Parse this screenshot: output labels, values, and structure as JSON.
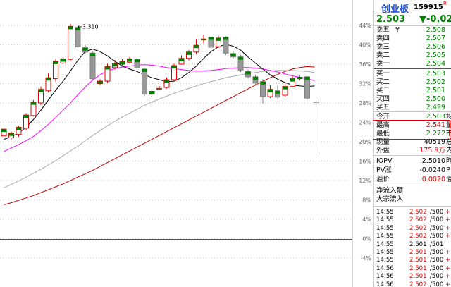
{
  "chart_data": {
    "type": "candlestick",
    "y_axis_labels": [
      "44%",
      "40%",
      "36%",
      "32%",
      "28%",
      "24%",
      "20%",
      "16%",
      "12%",
      "8%",
      "4%",
      "0%",
      "-4%"
    ],
    "annotation_high": "3.310",
    "candles": [
      {
        "o": 21.2,
        "c": 22.6,
        "h": 22.6,
        "l": 20.2
      },
      {
        "o": 20.8,
        "c": 21.8,
        "h": 22.1,
        "l": 20.5
      },
      {
        "o": 21.5,
        "c": 23.0,
        "h": 23.3,
        "l": 21.0
      },
      {
        "o": 22.8,
        "c": 25.5,
        "h": 25.9,
        "l": 22.4
      },
      {
        "o": 25.4,
        "c": 28.2,
        "h": 28.6,
        "l": 25.2
      },
      {
        "o": 28.0,
        "c": 30.8,
        "h": 31.4,
        "l": 27.6
      },
      {
        "o": 30.5,
        "c": 33.2,
        "h": 34.1,
        "l": 30.2
      },
      {
        "o": 33.0,
        "c": 36.6,
        "h": 37.0,
        "l": 32.4
      },
      {
        "o": 36.2,
        "c": 37.1,
        "h": 37.5,
        "l": 35.5
      },
      {
        "o": 37.0,
        "c": 43.8,
        "h": 44.3,
        "l": 36.8
      },
      {
        "o": 43.6,
        "c": 39.6,
        "h": 43.9,
        "l": 39.3
      },
      {
        "o": 39.4,
        "c": 38.5,
        "h": 40.0,
        "l": 38.2
      },
      {
        "o": 38.3,
        "c": 33.0,
        "h": 38.7,
        "l": 32.7
      },
      {
        "o": 32.0,
        "c": 32.5,
        "h": 32.9,
        "l": 31.7
      },
      {
        "o": 32.5,
        "c": 35.5,
        "h": 36.1,
        "l": 32.2
      },
      {
        "o": 35.3,
        "c": 36.1,
        "h": 36.9,
        "l": 34.9
      },
      {
        "o": 36.0,
        "c": 36.6,
        "h": 37.0,
        "l": 35.5
      },
      {
        "o": 36.4,
        "c": 37.1,
        "h": 37.5,
        "l": 36.1
      },
      {
        "o": 37.0,
        "c": 35.2,
        "h": 37.4,
        "l": 34.8
      },
      {
        "o": 35.0,
        "c": 29.8,
        "h": 35.3,
        "l": 29.4
      },
      {
        "o": 29.8,
        "c": 30.4,
        "h": 30.9,
        "l": 29.3
      },
      {
        "o": 31.0,
        "c": 31.0,
        "h": 31.5,
        "l": 30.6
      },
      {
        "o": 31.2,
        "c": 32.8,
        "h": 33.3,
        "l": 31.0
      },
      {
        "o": 32.8,
        "c": 35.7,
        "h": 36.1,
        "l": 32.4
      },
      {
        "o": 36.0,
        "c": 37.2,
        "h": 37.8,
        "l": 35.9
      },
      {
        "o": 37.2,
        "c": 38.5,
        "h": 38.9,
        "l": 36.8
      },
      {
        "o": 38.5,
        "c": 39.9,
        "h": 41.1,
        "l": 38.1
      },
      {
        "o": 41.0,
        "c": 41.2,
        "h": 42.1,
        "l": 40.3
      },
      {
        "o": 41.6,
        "c": 39.5,
        "h": 42.0,
        "l": 39.1
      },
      {
        "o": 39.6,
        "c": 41.4,
        "h": 41.9,
        "l": 39.4
      },
      {
        "o": 41.6,
        "c": 38.3,
        "h": 41.8,
        "l": 37.9
      },
      {
        "o": 38.2,
        "c": 37.5,
        "h": 38.7,
        "l": 37.2
      },
      {
        "o": 37.5,
        "c": 34.8,
        "h": 37.9,
        "l": 34.4
      },
      {
        "o": 34.5,
        "c": 33.4,
        "h": 34.9,
        "l": 33.1
      },
      {
        "o": 33.4,
        "c": 32.1,
        "h": 33.8,
        "l": 31.8
      },
      {
        "o": 32.4,
        "c": 29.3,
        "h": 32.9,
        "l": 27.9
      },
      {
        "o": 29.3,
        "c": 30.8,
        "h": 31.7,
        "l": 29.0
      },
      {
        "o": 30.5,
        "c": 29.2,
        "h": 31.6,
        "l": 28.8
      },
      {
        "o": 29.6,
        "c": 31.4,
        "h": 32.0,
        "l": 29.2
      },
      {
        "o": 31.4,
        "c": 33.0,
        "h": 33.5,
        "l": 31.3
      },
      {
        "o": 33.0,
        "c": 33.3,
        "h": 33.6,
        "l": 32.7
      },
      {
        "o": 33.4,
        "c": 29.0,
        "h": 33.5,
        "l": 28.7
      }
    ],
    "last_candle": {
      "o": 28.1,
      "c": 28.0,
      "h": 28.6,
      "l": 17.2
    },
    "ma5": [
      20.5,
      21.0,
      21.8,
      23.0,
      24.6,
      26.5,
      28.6,
      30.6,
      32.5,
      34.6,
      36.8,
      38.6,
      39.1,
      38.6,
      37.7,
      36.6,
      35.6,
      35.0,
      34.5,
      33.8,
      33.2,
      32.8,
      32.4,
      32.5,
      33.2,
      34.3,
      35.6,
      37.2,
      38.6,
      39.6,
      40.1,
      39.7,
      38.9,
      37.5,
      36.2,
      35.0,
      33.8,
      32.9,
      32.2,
      31.7,
      31.5,
      31.4,
      31.5
    ],
    "ma10": [
      18.0,
      18.7,
      19.4,
      20.2,
      21.1,
      22.3,
      23.6,
      25.0,
      26.5,
      28.0,
      29.7,
      31.3,
      32.7,
      33.8,
      34.6,
      35.1,
      35.4,
      35.6,
      35.8,
      35.9,
      35.8,
      35.6,
      35.3,
      35.1,
      34.9,
      34.7,
      34.6,
      34.6,
      34.7,
      34.9,
      35.1,
      35.2,
      35.3,
      35.3,
      35.2,
      35.0,
      34.7,
      34.4,
      34.0,
      33.6,
      33.3,
      33.0,
      32.6
    ],
    "ma20": [
      10.5,
      11.2,
      11.9,
      12.7,
      13.5,
      14.3,
      15.2,
      16.1,
      17.1,
      18.1,
      19.1,
      20.2,
      21.3,
      22.3,
      23.3,
      24.2,
      25.1,
      25.9,
      26.7,
      27.5,
      28.2,
      28.8,
      29.4,
      30.0,
      30.5,
      31.0,
      31.5,
      32.0,
      32.4,
      32.8,
      33.2,
      33.5,
      33.8,
      34.1,
      34.3,
      34.5,
      34.6,
      34.7,
      34.7,
      34.7,
      34.6,
      34.5,
      34.3
    ],
    "ma60": [
      7.0,
      7.4,
      7.9,
      8.4,
      8.9,
      9.5,
      10.1,
      10.7,
      11.3,
      12.0,
      12.7,
      13.4,
      14.1,
      14.9,
      15.7,
      16.5,
      17.3,
      18.1,
      18.9,
      19.7,
      20.5,
      21.3,
      22.1,
      22.9,
      23.7,
      24.5,
      25.3,
      26.1,
      26.9,
      27.7,
      28.5,
      29.3,
      30.1,
      30.9,
      31.7,
      32.5,
      33.2,
      33.9,
      34.5,
      35.0,
      35.3,
      35.5,
      35.4
    ],
    "colors": {
      "up": "#e60000",
      "down_fill": "#999999",
      "down_stroke": "#808080",
      "green_top": "#008000",
      "ma5": "#000000",
      "ma10": "#ff00ff",
      "ma20": "#aaaaaa",
      "ma60": "#c00000",
      "grid": "#c8c8c8",
      "bottom_bar": "#555555"
    }
  },
  "side": {
    "name": "创业板",
    "code": "159915",
    "code_mark": "R",
    "price": "2.503",
    "change": "▼-0.02",
    "order_book": [
      {
        "label": "卖五",
        "extra": "¥",
        "price": "2.508",
        "color": "green"
      },
      {
        "label": "卖四",
        "extra": "",
        "price": "2.507",
        "color": "green"
      },
      {
        "label": "卖三",
        "extra": "",
        "price": "2.506",
        "color": "green"
      },
      {
        "label": "卖二",
        "extra": "",
        "price": "2.505",
        "color": "green"
      },
      {
        "label": "卖一",
        "extra": "",
        "price": "2.504",
        "color": "green"
      },
      {
        "label": "买一",
        "extra": "",
        "price": "2.503",
        "color": "green"
      },
      {
        "label": "买二",
        "extra": "",
        "price": "2.502",
        "color": "green"
      },
      {
        "label": "买三",
        "extra": "",
        "price": "2.501",
        "color": "green"
      },
      {
        "label": "买四",
        "extra": "",
        "price": "2.500",
        "color": "green"
      },
      {
        "label": "买五",
        "extra": "",
        "price": "2.499",
        "color": "green"
      }
    ],
    "stats": [
      {
        "label": "今开",
        "value": "2.503",
        "vcolor": "green",
        "cut": "均"
      },
      {
        "label": "最高",
        "value": "2.541",
        "vcolor": "red",
        "cut": "量"
      },
      {
        "label": "最低",
        "value": "2.272",
        "vcolor": "green",
        "cut": "市"
      },
      {
        "label": "现量",
        "value": "40519",
        "vcolor": "black",
        "cut": "总"
      },
      {
        "label": "外盘",
        "value": "175.9万",
        "vcolor": "red",
        "cut": "内"
      }
    ],
    "iopv": [
      {
        "label": "IOPV",
        "value": "2.5010",
        "vcolor": "black",
        "cut": "昨"
      },
      {
        "label": "PV涨",
        "value": "-0.0240",
        "vcolor": "black",
        "cut": "P"
      },
      {
        "label": "溢价",
        "value": "0.0020",
        "vcolor": "red",
        "cut": "溢"
      }
    ],
    "flows": [
      "净流入额",
      "大宗流入"
    ],
    "ticks": [
      {
        "t": "14:55",
        "p": "2.502",
        "v": "500",
        "f": "+",
        "pc": "red",
        "fc": "red"
      },
      {
        "t": "14:55",
        "p": "2.502",
        "v": "500",
        "f": "+",
        "pc": "red",
        "fc": "red"
      },
      {
        "t": "14:55",
        "p": "2.502",
        "v": "500",
        "f": "+",
        "pc": "red",
        "fc": "red"
      },
      {
        "t": "14:55",
        "p": "2.502",
        "v": "500",
        "f": "+",
        "pc": "red",
        "fc": "red"
      },
      {
        "t": "14:55",
        "p": "2.501",
        "v": "501",
        "f": "",
        "pc": "black",
        "fc": "black"
      },
      {
        "t": "14:55",
        "p": "2.501",
        "v": "500",
        "f": "+",
        "pc": "red",
        "fc": "red"
      },
      {
        "t": "14:55",
        "p": "2.501",
        "v": "500",
        "f": "+",
        "pc": "red",
        "fc": "red"
      },
      {
        "t": "14:56",
        "p": "2.501",
        "v": "500",
        "f": "+",
        "pc": "red",
        "fc": "red"
      },
      {
        "t": "14:56",
        "p": "2.501",
        "v": "500",
        "f": "+",
        "pc": "red",
        "fc": "red"
      },
      {
        "t": "14:56",
        "p": "2.502",
        "v": "500",
        "f": "+",
        "pc": "red",
        "fc": "red"
      }
    ]
  }
}
